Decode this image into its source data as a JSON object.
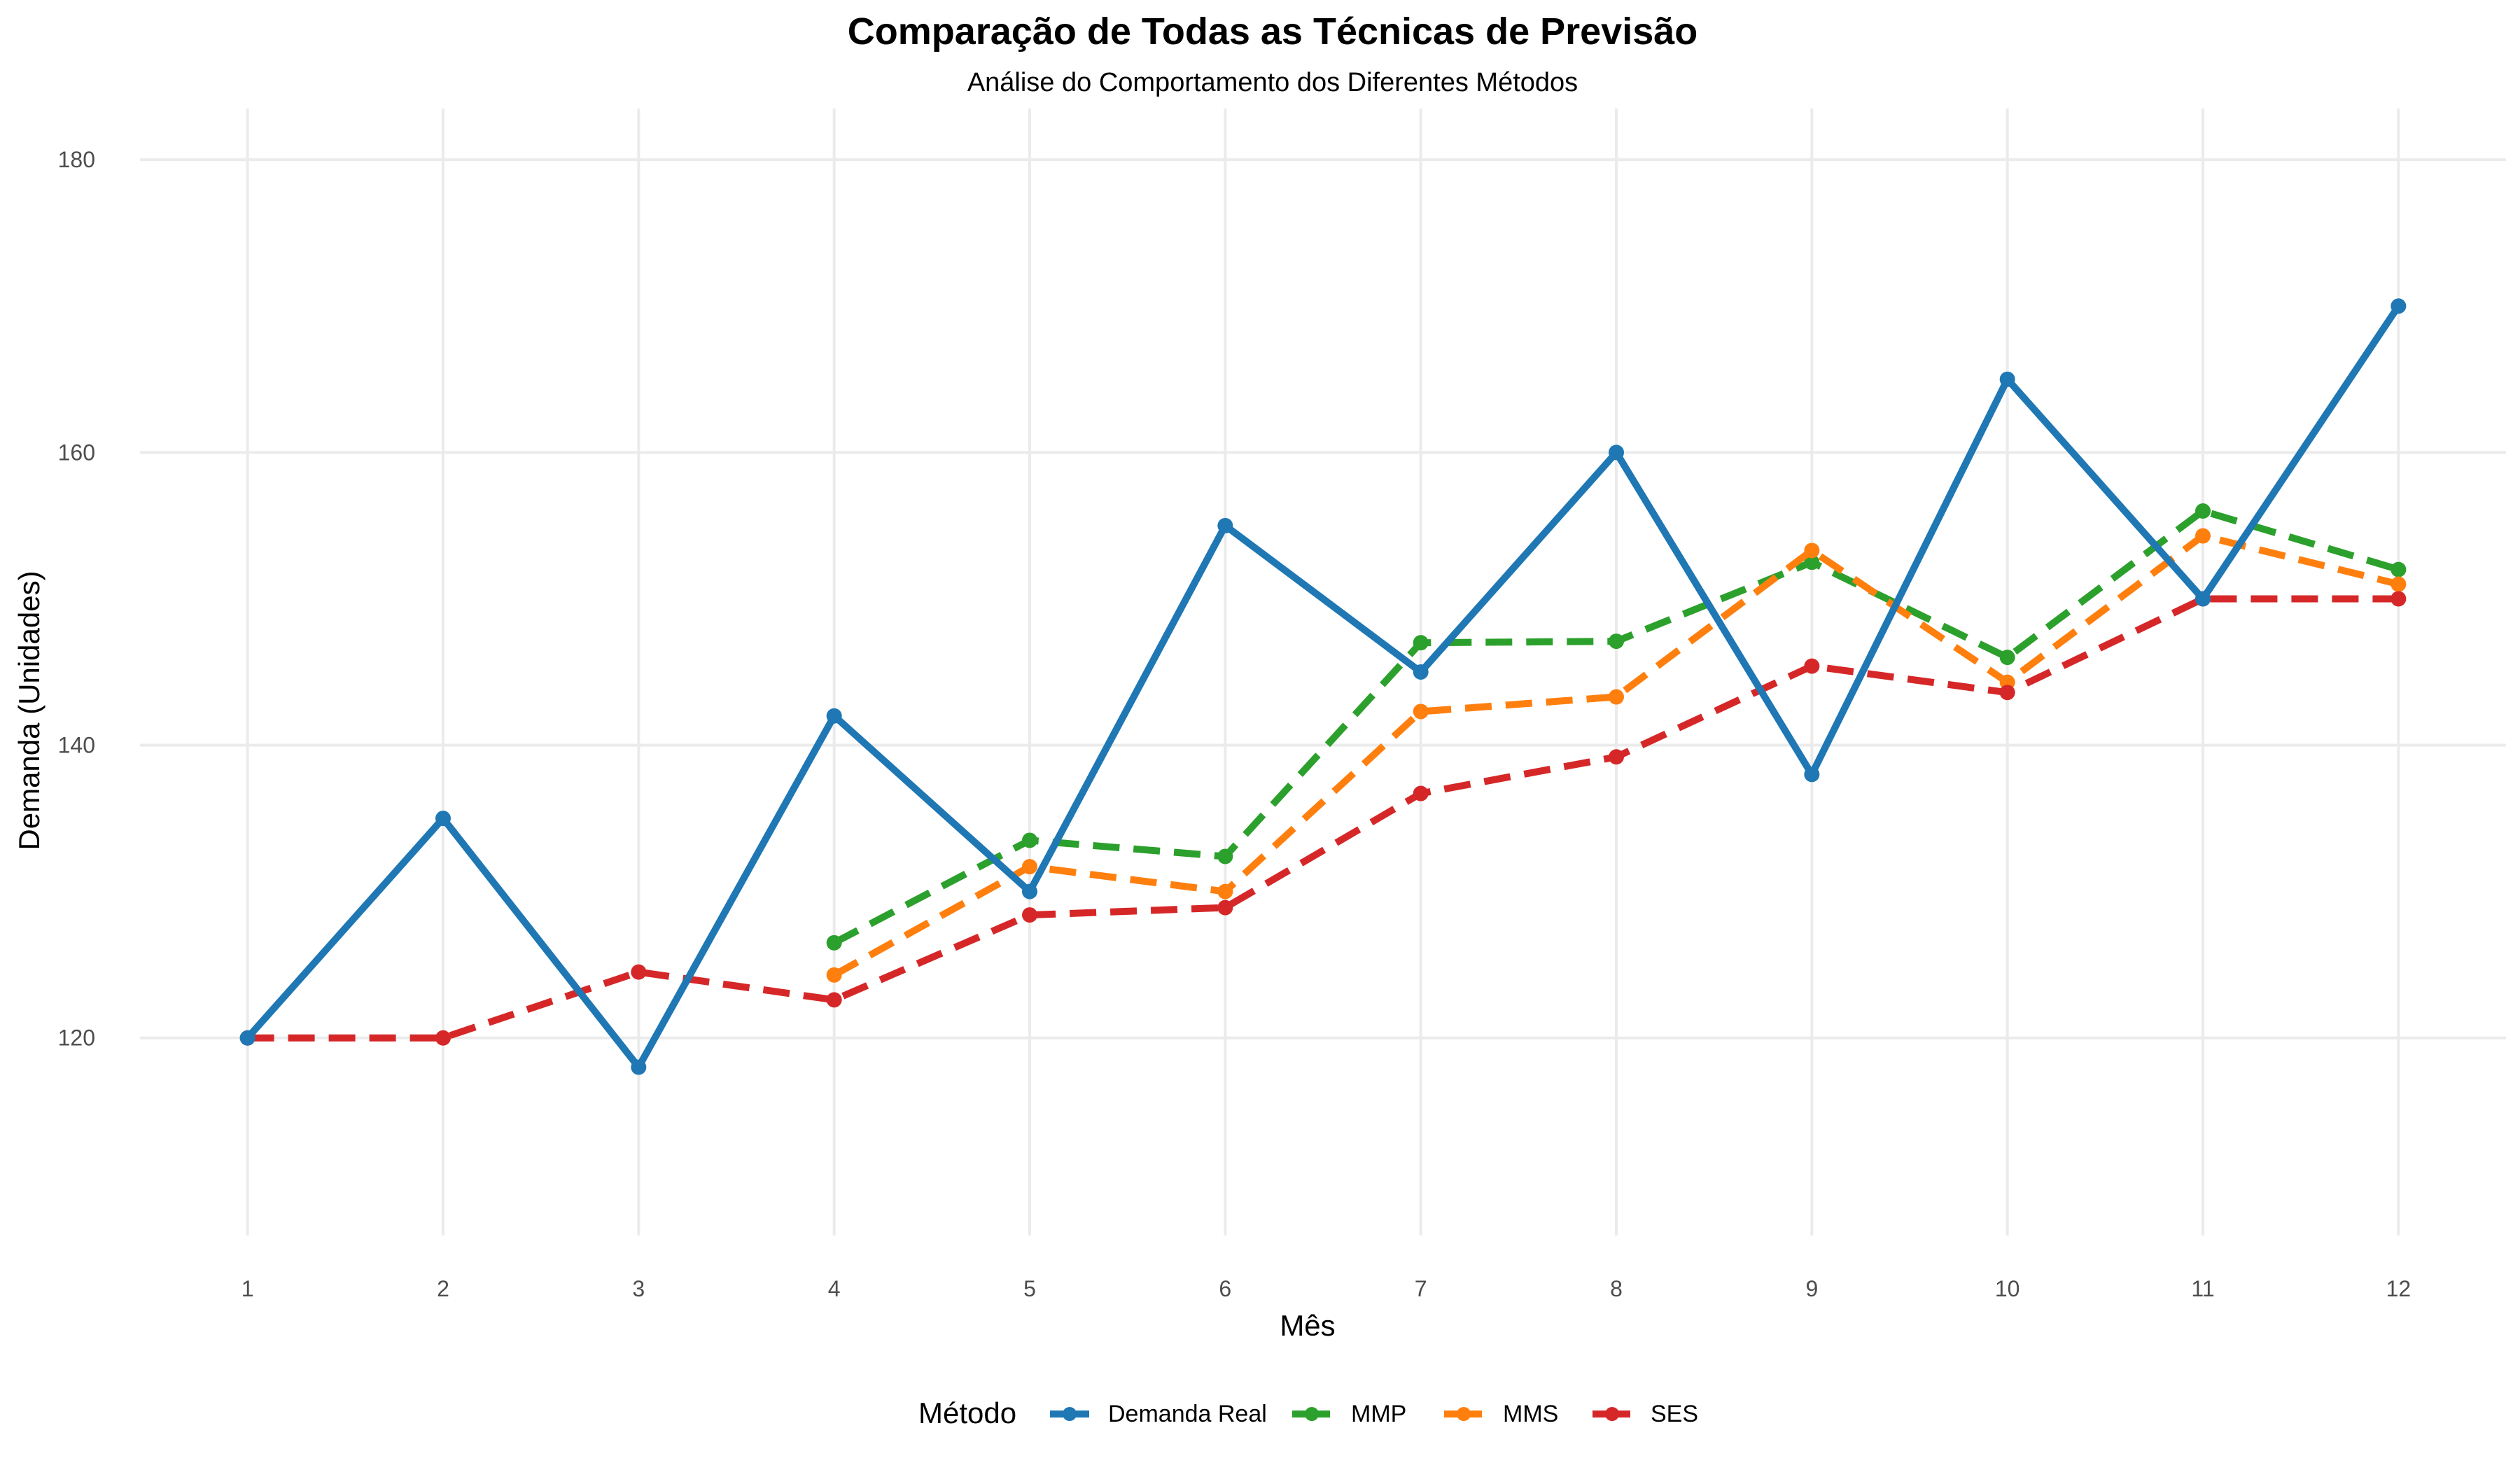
{
  "chart_data": {
    "type": "line",
    "title": "Comparação de Todas as Técnicas de Previsão",
    "subtitle": "Análise do Comportamento dos Diferentes Métodos",
    "xlabel": "Mês",
    "ylabel": "Demanda (Unidades)",
    "x": [
      1,
      2,
      3,
      4,
      5,
      6,
      7,
      8,
      9,
      10,
      11,
      12
    ],
    "x_ticks": [
      "1",
      "2",
      "3",
      "4",
      "5",
      "6",
      "7",
      "8",
      "9",
      "10",
      "11",
      "12"
    ],
    "y_ticks": [
      "120",
      "140",
      "160",
      "180"
    ],
    "xlim": [
      0.45,
      12.55
    ],
    "ylim": [
      106.5,
      183.5
    ],
    "grid": true,
    "legend_title": "Método",
    "legend_position": "bottom",
    "series": [
      {
        "name": "Demanda Real",
        "color": "#1f77b4",
        "dash": "solid",
        "values": [
          120,
          135,
          118,
          142,
          130,
          155,
          145,
          160,
          138,
          165,
          150,
          170
        ]
      },
      {
        "name": "MMP",
        "color": "#2ca02c",
        "dash": "dashed",
        "values": [
          null,
          null,
          null,
          126.5,
          133.5,
          132.4,
          147.0,
          147.1,
          152.5,
          146.0,
          156.0,
          152.0
        ]
      },
      {
        "name": "MMS",
        "color": "#ff7f0e",
        "dash": "dashed",
        "values": [
          null,
          null,
          null,
          124.3,
          131.7,
          130.0,
          142.3,
          143.3,
          153.3,
          144.3,
          154.3,
          151.0
        ]
      },
      {
        "name": "SES",
        "color": "#d62728",
        "dash": "dashed",
        "values": [
          120,
          120,
          124.5,
          122.6,
          128.4,
          128.9,
          136.7,
          139.2,
          145.4,
          143.6,
          150.0,
          150.0
        ]
      }
    ]
  }
}
